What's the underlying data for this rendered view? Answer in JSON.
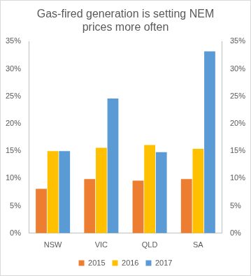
{
  "chart_data": {
    "type": "bar",
    "title": "Gas-fired generation is setting NEM prices more often",
    "categories": [
      "NSW",
      "VIC",
      "QLD",
      "SA"
    ],
    "series": [
      {
        "name": "2015",
        "color": "#ed7d31",
        "values": [
          8.1,
          9.9,
          9.6,
          9.9
        ]
      },
      {
        "name": "2016",
        "color": "#ffc000",
        "values": [
          15.0,
          15.6,
          16.1,
          15.4
        ]
      },
      {
        "name": "2017",
        "color": "#5b9bd5",
        "values": [
          15.0,
          24.6,
          14.8,
          33.2
        ]
      }
    ],
    "ylim": [
      0,
      35
    ],
    "yticks": [
      {
        "value": 0,
        "label": "0%"
      },
      {
        "value": 5,
        "label": "5%"
      },
      {
        "value": 10,
        "label": "10%"
      },
      {
        "value": 15,
        "label": "15%"
      },
      {
        "value": 20,
        "label": "20%"
      },
      {
        "value": 25,
        "label": "25%"
      },
      {
        "value": 30,
        "label": "30%"
      },
      {
        "value": 35,
        "label": "35%"
      }
    ],
    "y2lim": [
      0,
      35
    ],
    "y2ticks": [
      {
        "value": 0,
        "label": "0%"
      },
      {
        "value": 5,
        "label": "5%"
      },
      {
        "value": 10,
        "label": "10%"
      },
      {
        "value": 15,
        "label": "15%"
      },
      {
        "value": 20,
        "label": "20%"
      },
      {
        "value": 25,
        "label": "25%"
      },
      {
        "value": 30,
        "label": "30%"
      },
      {
        "value": 35,
        "label": "35%"
      }
    ],
    "grid": false,
    "legend": "bottom"
  }
}
